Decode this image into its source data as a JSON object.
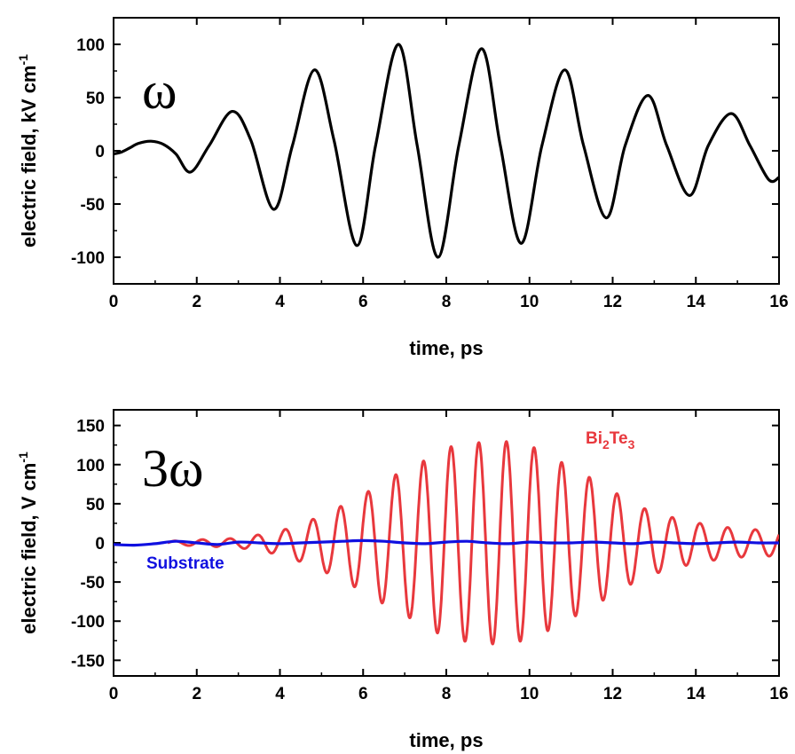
{
  "chart_data": [
    {
      "type": "line",
      "panel_label": "ω",
      "xlabel": "time, ps",
      "ylabel": "electric field, kV cm",
      "ylabel_sup": "-1",
      "xlim": [
        0,
        16
      ],
      "ylim": [
        -125,
        125
      ],
      "xticks": [
        0,
        2,
        4,
        6,
        8,
        10,
        12,
        14,
        16
      ],
      "yticks": [
        -100,
        -50,
        0,
        50,
        100
      ],
      "series": [
        {
          "color": "#000000",
          "x": [
            0,
            0.2,
            0.4,
            0.6,
            0.9,
            1.2,
            1.5,
            1.85,
            2.3,
            2.85,
            3.3,
            3.85,
            4.3,
            4.83,
            5.3,
            5.85,
            6.3,
            6.85,
            7.3,
            7.8,
            8.3,
            8.85,
            9.3,
            9.8,
            10.3,
            10.85,
            11.3,
            11.85,
            12.3,
            12.85,
            13.3,
            13.85,
            14.3,
            14.85,
            15.3,
            15.75,
            16
          ],
          "y": [
            -3,
            -1,
            3,
            7,
            9,
            6,
            -3,
            -20,
            5,
            37,
            10,
            -55,
            5,
            76,
            10,
            -89,
            5,
            100,
            5,
            -100,
            5,
            96,
            5,
            -87,
            5,
            76,
            5,
            -63,
            5,
            52,
            5,
            -42,
            5,
            35,
            5,
            -27,
            -25
          ]
        }
      ],
      "grid": false,
      "legend": "none"
    },
    {
      "type": "line",
      "panel_label": "3ω",
      "xlabel": "time, ps",
      "ylabel": "electric field, V cm",
      "ylabel_sup": "-1",
      "xlim": [
        0,
        16
      ],
      "ylim": [
        -170,
        170
      ],
      "xticks": [
        0,
        2,
        4,
        6,
        8,
        10,
        12,
        14,
        16
      ],
      "yticks": [
        -150,
        -100,
        -50,
        0,
        50,
        100,
        150
      ],
      "series_labels": {
        "bi2te3": {
          "main": "Bi",
          "sub1": "2",
          "mid": "Te",
          "sub2": "3"
        },
        "substrate": "Substrate"
      },
      "series": [
        {
          "key": "bi2te3",
          "color": "#e8383d",
          "period": 0.665,
          "start": 1.3,
          "envelope": {
            "t": [
              1.3,
              2.0,
              3.0,
              4.0,
              4.7,
              5.4,
              6.1,
              6.7,
              7.4,
              8.0,
              8.7,
              9.4,
              10.1,
              10.7,
              11.4,
              12.1,
              12.7,
              13.4,
              14.1,
              14.7,
              15.4,
              16.0
            ],
            "a": [
              2,
              4,
              6,
              15,
              28,
              45,
              65,
              85,
              103,
              122,
              128,
              130,
              122,
              105,
              85,
              63,
              45,
              33,
              25,
              20,
              17,
              17
            ]
          }
        },
        {
          "key": "substrate",
          "color": "#1010e0",
          "x": [
            0,
            0.5,
            1.0,
            1.5,
            2.0,
            2.5,
            3.0,
            3.5,
            4.0,
            4.5,
            5.0,
            5.5,
            6.0,
            6.5,
            7.0,
            7.5,
            8.0,
            8.5,
            9.0,
            9.5,
            10.0,
            10.5,
            11.0,
            11.5,
            12.0,
            12.5,
            13.0,
            13.5,
            14.0,
            14.5,
            15.0,
            15.5,
            16.0
          ],
          "y": [
            -2,
            -3,
            -1,
            2,
            0,
            -2,
            1,
            0,
            -1,
            0,
            1,
            2,
            3,
            2,
            0,
            -1,
            1,
            2,
            0,
            -1,
            1,
            0,
            0,
            1,
            0,
            -1,
            1,
            0,
            -1,
            0,
            1,
            0,
            0
          ]
        }
      ],
      "grid": false,
      "legend": "none"
    }
  ]
}
